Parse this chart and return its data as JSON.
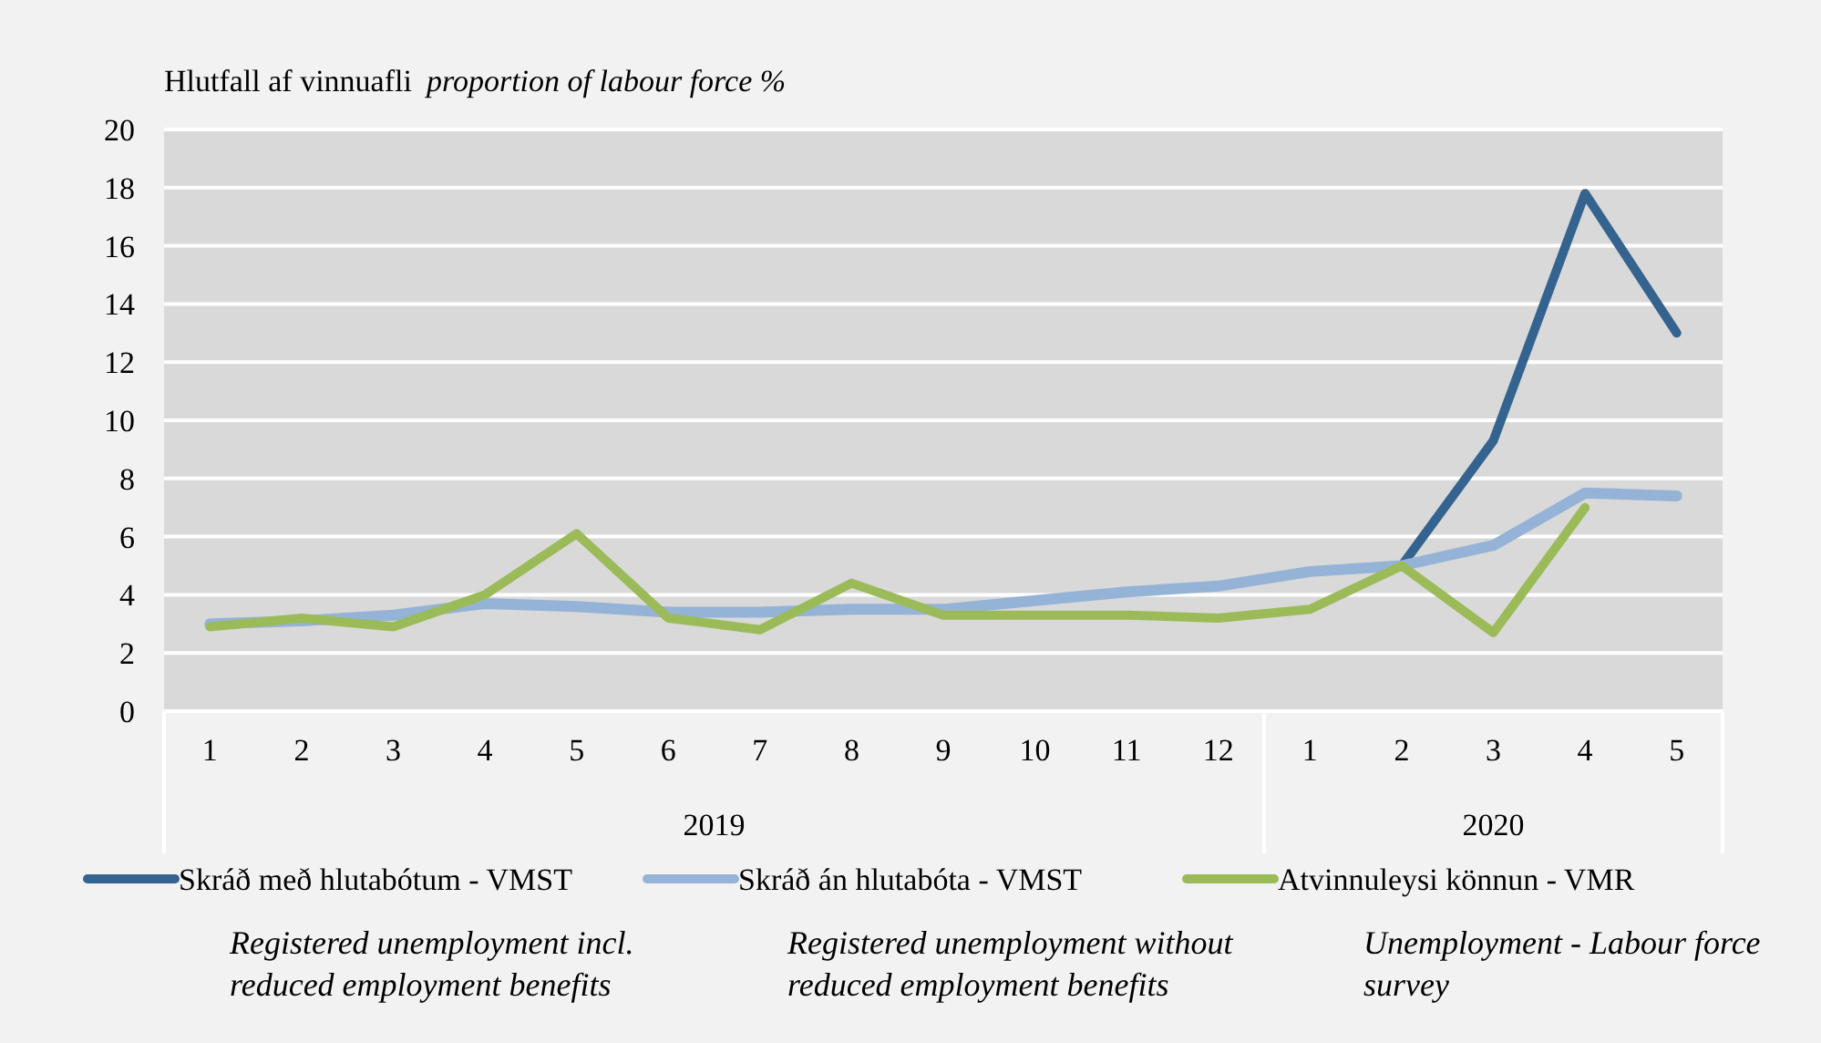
{
  "chart_data": {
    "type": "line",
    "title": "Hlutfall af vinnuafli",
    "ylabel": "proportion of labour force %",
    "categories": [
      "1",
      "2",
      "3",
      "4",
      "5",
      "6",
      "7",
      "8",
      "9",
      "10",
      "11",
      "12",
      "1",
      "2",
      "3",
      "4",
      "5"
    ],
    "series": [
      {
        "name": "Skráð með hlutabótum - VMST",
        "color": "#35638f",
        "values": [
          null,
          null,
          null,
          null,
          null,
          null,
          null,
          null,
          null,
          null,
          null,
          null,
          null,
          5.0,
          9.3,
          17.8,
          13.0
        ]
      },
      {
        "name": "Skráð án hlutabóta - VMST",
        "color": "#95b3d7",
        "values": [
          3.0,
          3.1,
          3.3,
          3.7,
          3.6,
          3.4,
          3.4,
          3.5,
          3.5,
          3.8,
          4.1,
          4.3,
          4.8,
          5.0,
          5.7,
          7.5,
          7.4
        ]
      },
      {
        "name": "Atvinnuleysi könnun - VMR",
        "color": "#9bbb59",
        "values": [
          2.9,
          3.2,
          2.9,
          4.0,
          6.1,
          3.2,
          2.8,
          4.4,
          3.3,
          3.3,
          3.3,
          3.2,
          3.5,
          5.0,
          2.7,
          7.0,
          null
        ]
      }
    ],
    "annotations": [
      "2019",
      "2020",
      "Registered unemployment incl. reduced employment benefits",
      "Registered unemployment without reduced employment benefits",
      "Unemployment - Labour force survey"
    ],
    "ylim": [
      0,
      20
    ],
    "yticks": [
      0,
      2,
      4,
      6,
      8,
      10,
      12,
      14,
      16,
      18,
      20
    ],
    "grid": "y",
    "legend": "bottom",
    "marker": "none",
    "line_style": "solid"
  }
}
